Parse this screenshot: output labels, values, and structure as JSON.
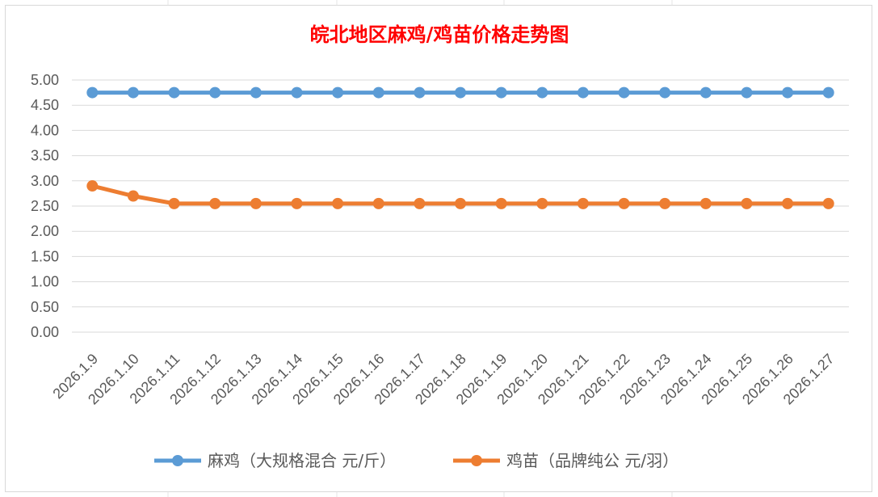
{
  "chart_data": {
    "type": "line",
    "title": "皖北地区麻鸡/鸡苗价格走势图",
    "xlabel": "",
    "ylabel": "",
    "categories": [
      "2026.1.9",
      "2026.1.10",
      "2026.1.11",
      "2026.1.12",
      "2026.1.13",
      "2026.1.14",
      "2026.1.15",
      "2026.1.16",
      "2026.1.17",
      "2026.1.18",
      "2026.1.19",
      "2026.1.20",
      "2026.1.21",
      "2026.1.22",
      "2026.1.23",
      "2026.1.24",
      "2026.1.25",
      "2026.1.26",
      "2026.1.27"
    ],
    "y_ticks": [
      "0.00",
      "0.50",
      "1.00",
      "1.50",
      "2.00",
      "2.50",
      "3.00",
      "3.50",
      "4.00",
      "4.50",
      "5.00"
    ],
    "ylim": [
      0,
      5
    ],
    "grid": true,
    "legend_position": "bottom",
    "series": [
      {
        "name": "麻鸡（大规格混合 元/斤）",
        "color": "#5b9bd5",
        "values": [
          4.75,
          4.75,
          4.75,
          4.75,
          4.75,
          4.75,
          4.75,
          4.75,
          4.75,
          4.75,
          4.75,
          4.75,
          4.75,
          4.75,
          4.75,
          4.75,
          4.75,
          4.75,
          4.75
        ]
      },
      {
        "name": "鸡苗（品牌纯公 元/羽）",
        "color": "#ed7d31",
        "values": [
          2.9,
          2.7,
          2.55,
          2.55,
          2.55,
          2.55,
          2.55,
          2.55,
          2.55,
          2.55,
          2.55,
          2.55,
          2.55,
          2.55,
          2.55,
          2.55,
          2.55,
          2.55,
          2.55
        ]
      }
    ],
    "title_color": "#ff0000",
    "grid_color": "#d9d9d9",
    "tick_color": "#595959"
  }
}
